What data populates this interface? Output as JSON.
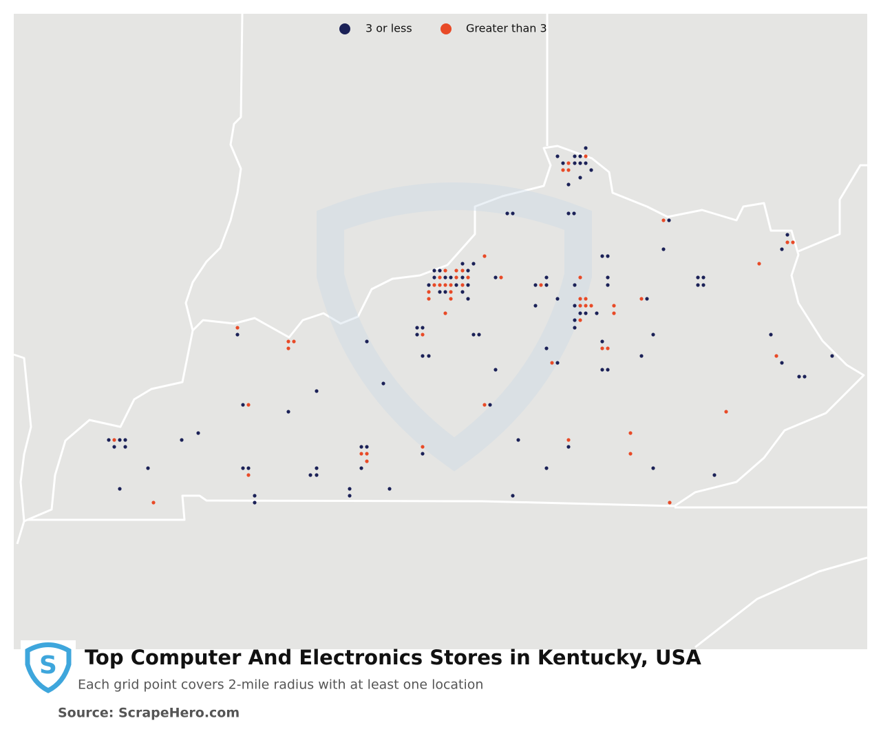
{
  "legend": {
    "items": [
      {
        "label": "3 or less",
        "color": "#1b2157"
      },
      {
        "label": "Greater than 3",
        "color": "#e84a27"
      }
    ]
  },
  "header": {
    "title": "Top Computer And Electronics Stores in Kentucky, USA",
    "subtitle": "Each grid point covers 2-mile radius with at least one location"
  },
  "footer": {
    "source": "Source: ScrapeHero.com"
  }
}
